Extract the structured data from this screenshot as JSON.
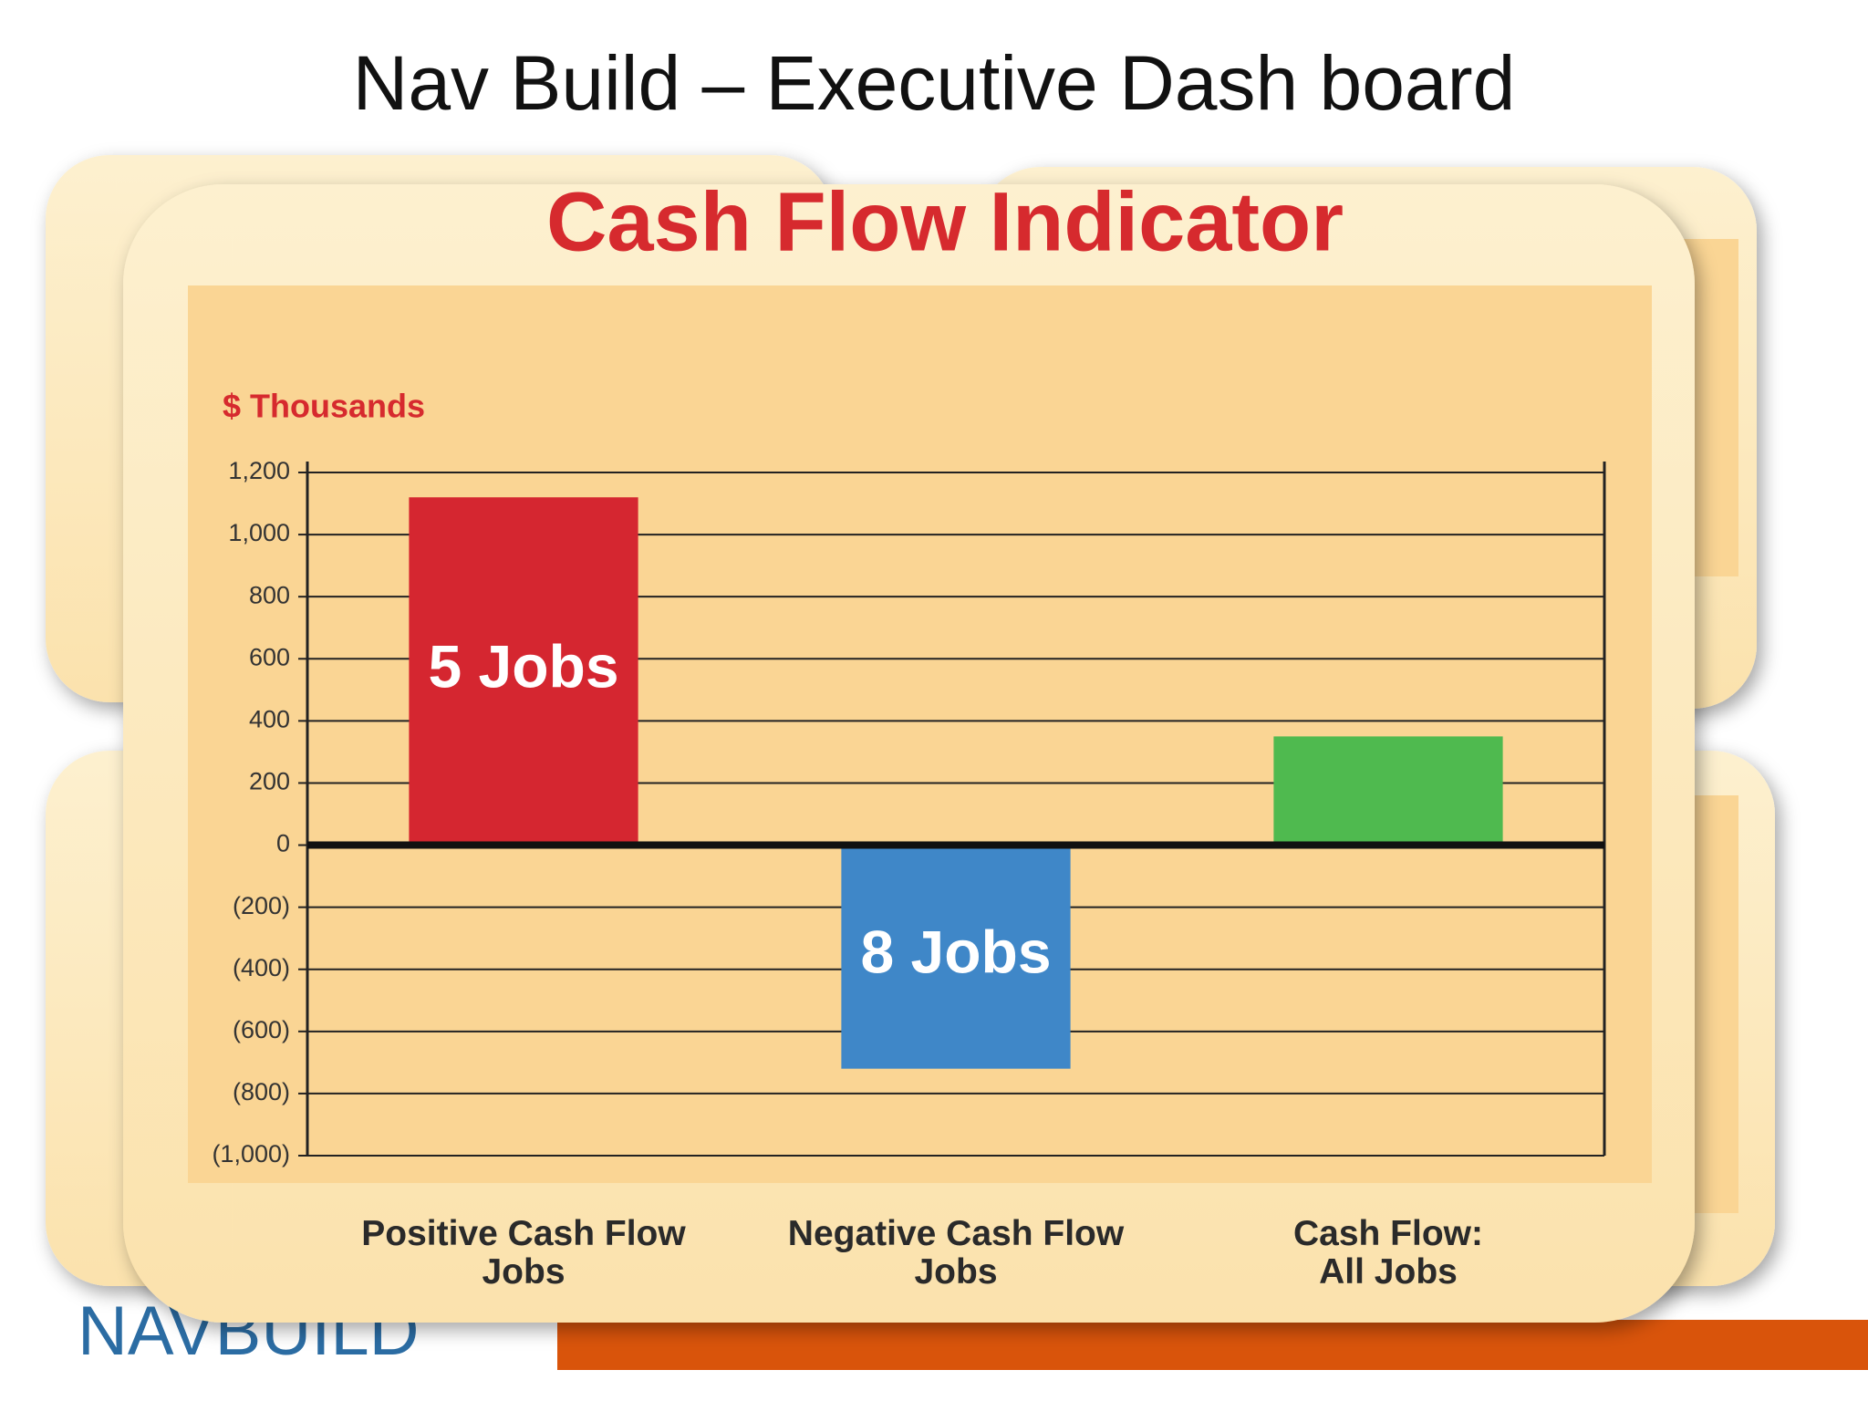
{
  "slide_title": "Nav Build – Executive Dash board",
  "logo_text": "NAVBUILD",
  "chart_data": {
    "type": "bar",
    "title": "Cash Flow Indicator",
    "y_label": "$ Thousands",
    "categories": [
      "Positive Cash Flow Jobs",
      "Negative Cash Flow Jobs",
      "Cash Flow: All Jobs"
    ],
    "values": [
      1120,
      -720,
      350
    ],
    "colors": [
      "#d52630",
      "#3f87c8",
      "#4fba4f"
    ],
    "bar_labels": [
      "5 Jobs",
      "8 Jobs",
      null
    ],
    "ylim": [
      -1000,
      1200
    ],
    "yticks": [
      {
        "value": -1000,
        "label": "(1,000)"
      },
      {
        "value": -800,
        "label": "(800)"
      },
      {
        "value": -600,
        "label": "(600)"
      },
      {
        "value": -400,
        "label": "(400)"
      },
      {
        "value": -200,
        "label": "(200)"
      },
      0,
      200,
      400,
      600,
      800,
      {
        "value": 1000,
        "label": "1,000"
      },
      {
        "value": 1200,
        "label": "1,200"
      }
    ],
    "grid": true
  }
}
